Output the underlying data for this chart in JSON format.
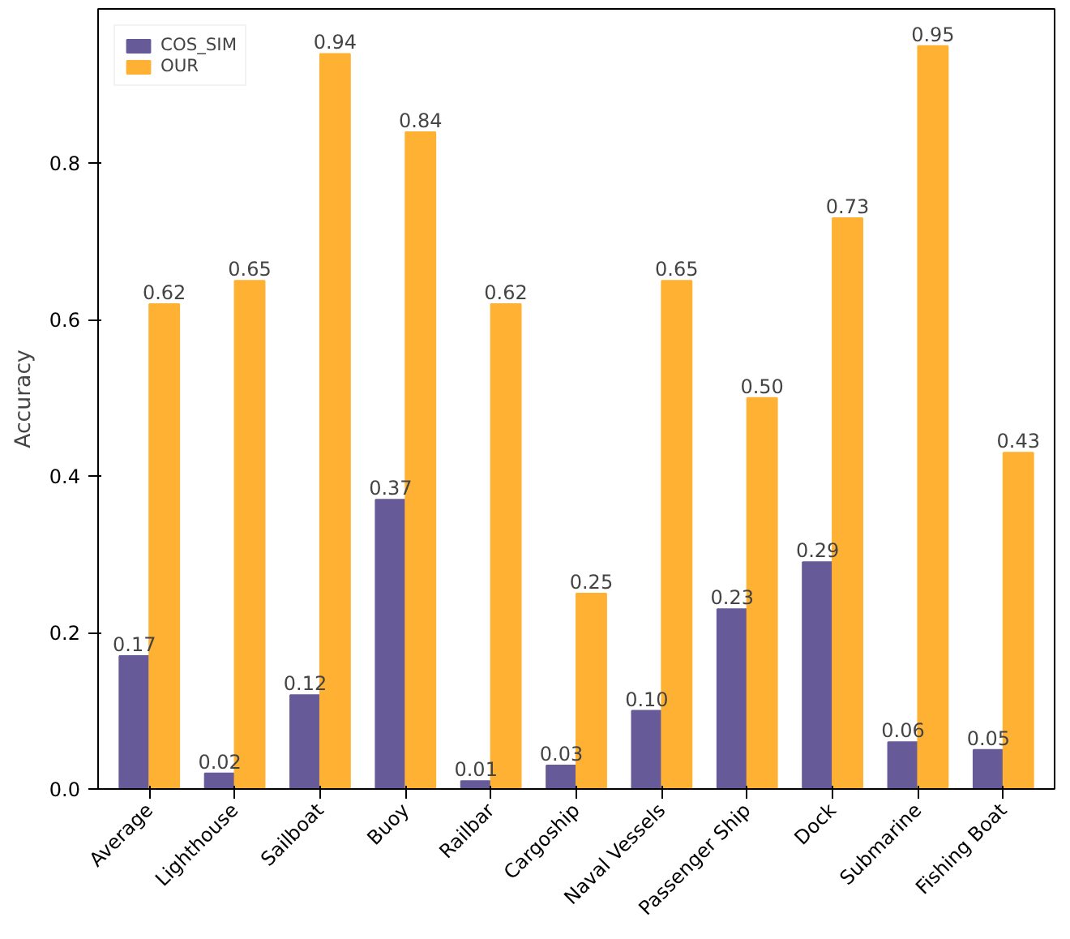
{
  "chart_data": {
    "type": "bar",
    "ylabel": "Accuracy",
    "categories": [
      "Average",
      "Lighthouse",
      "Sailboat",
      "Buoy",
      "Railbar",
      "Cargoship",
      "Naval Vessels",
      "Passenger Ship",
      "Dock",
      "Submarine",
      "Fishing Boat"
    ],
    "series": [
      {
        "name": "COS_SIM",
        "color": "#675a98",
        "values": [
          0.17,
          0.02,
          0.12,
          0.37,
          0.01,
          0.03,
          0.1,
          0.23,
          0.29,
          0.06,
          0.05
        ],
        "value_labels": [
          "0.17",
          "0.02",
          "0.12",
          "0.37",
          "0.01",
          "0.03",
          "0.10",
          "0.23",
          "0.29",
          "0.06",
          "0.05"
        ]
      },
      {
        "name": "OUR",
        "color": "#ffb133",
        "values": [
          0.62,
          0.65,
          0.94,
          0.84,
          0.62,
          0.25,
          0.65,
          0.5,
          0.73,
          0.95,
          0.43
        ],
        "value_labels": [
          "0.62",
          "0.65",
          "0.94",
          "0.84",
          "0.62",
          "0.25",
          "0.65",
          "0.50",
          "0.73",
          "0.95",
          "0.43"
        ]
      }
    ],
    "ylim": [
      0,
      0.9975
    ],
    "yticks": [
      {
        "value": 0,
        "label": "0.0"
      },
      {
        "value": 0.2,
        "label": "0.2"
      },
      {
        "value": 0.4,
        "label": "0.4"
      },
      {
        "value": 0.6,
        "label": "0.6"
      },
      {
        "value": 0.8,
        "label": "0.8"
      }
    ],
    "grid": false,
    "legend": "top left"
  }
}
